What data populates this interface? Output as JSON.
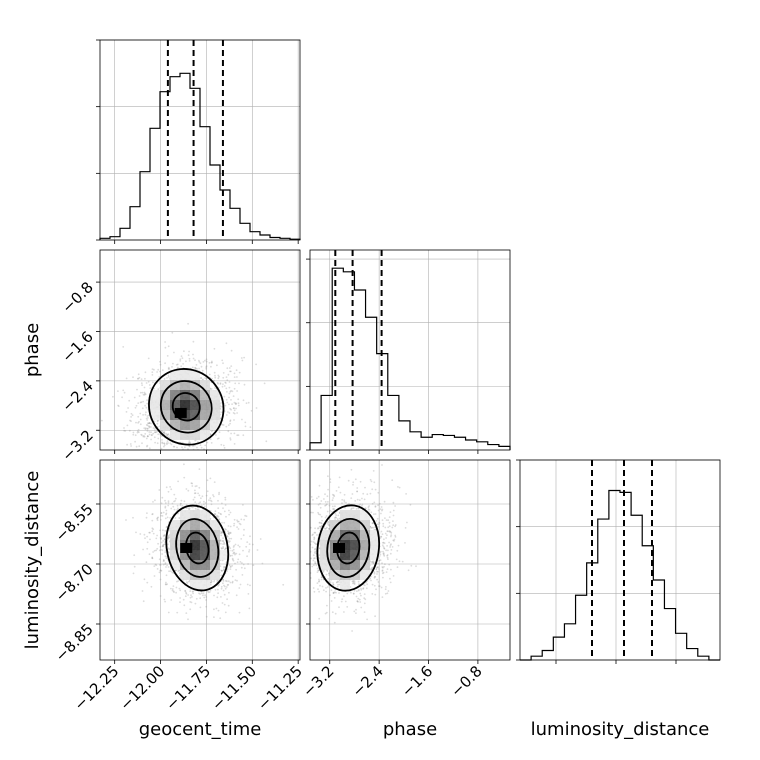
{
  "chart_data": {
    "type": "corner",
    "parameters": [
      "geocent_time",
      "phase",
      "luminosity_distance"
    ],
    "axis_labels": {
      "geocent_time": "geocent_time",
      "phase": "phase",
      "luminosity_distance": "luminosity_distance"
    },
    "ranges": {
      "geocent_time": [
        -12.33,
        -11.24
      ],
      "phase": [
        -3.52,
        -0.28
      ],
      "luminosity_distance": [
        -8.94,
        -8.44
      ]
    },
    "ticks": {
      "geocent_time": [
        {
          "value": -12.25,
          "label": "−12.25"
        },
        {
          "value": -12.0,
          "label": "−12.00"
        },
        {
          "value": -11.75,
          "label": "−11.75"
        },
        {
          "value": -11.5,
          "label": "−11.50"
        },
        {
          "value": -11.25,
          "label": "−11.25"
        }
      ],
      "phase": [
        {
          "value": -3.2,
          "label": "−3.2"
        },
        {
          "value": -2.4,
          "label": "−2.4"
        },
        {
          "value": -1.6,
          "label": "−1.6"
        },
        {
          "value": -0.8,
          "label": "−0.8"
        }
      ],
      "luminosity_distance": [
        {
          "value": -8.85,
          "label": "−8.85"
        },
        {
          "value": -8.7,
          "label": "−8.70"
        },
        {
          "value": -8.55,
          "label": "−8.55"
        }
      ]
    },
    "histograms": {
      "geocent_time": {
        "bins": [
          -12.33,
          -11.24
        ],
        "counts": [
          0.01,
          0.02,
          0.07,
          0.2,
          0.41,
          0.67,
          0.89,
          0.98,
          1.0,
          0.91,
          0.68,
          0.45,
          0.3,
          0.19,
          0.1,
          0.05,
          0.03,
          0.015,
          0.01,
          0.005
        ],
        "quantiles": [
          -11.96,
          -11.82,
          -11.66
        ],
        "ylim": [
          0,
          1.2
        ],
        "yticks": [
          0,
          0.4,
          0.8,
          1.2
        ]
      },
      "phase": {
        "bins": [
          -3.52,
          -0.28
        ],
        "counts": [
          0.04,
          0.3,
          1.0,
          0.98,
          0.88,
          0.73,
          0.53,
          0.3,
          0.16,
          0.1,
          0.07,
          0.085,
          0.08,
          0.07,
          0.055,
          0.045,
          0.03,
          0.02
        ],
        "quantiles": [
          -3.11,
          -2.83,
          -2.36
        ],
        "ylim": [
          0,
          1.1
        ],
        "yticks": [
          0,
          0.35,
          0.7,
          1.05
        ]
      },
      "luminosity_distance": {
        "bins": [
          -8.94,
          -8.44
        ],
        "counts": [
          0.0,
          0.02,
          0.05,
          0.12,
          0.19,
          0.34,
          0.51,
          0.74,
          0.89,
          0.88,
          0.76,
          0.6,
          0.42,
          0.27,
          0.14,
          0.06,
          0.02,
          0.0
        ],
        "quantiles": [
          -8.76,
          -8.68,
          -8.61
        ],
        "ylim": [
          0,
          1.05
        ],
        "yticks": [
          0,
          0.35,
          0.7,
          1.05
        ]
      }
    },
    "joint": [
      {
        "x": "geocent_time",
        "y": "phase",
        "mean": [
          -11.86,
          -2.82
        ],
        "sd": [
          0.12,
          0.38
        ],
        "angle_deg": 38,
        "peak": [
          -11.89,
          -2.92
        ],
        "contour_levels": [
          0.8,
          1.5,
          2.2
        ]
      },
      {
        "x": "geocent_time",
        "y": "luminosity_distance",
        "mean": [
          -11.8,
          -8.66
        ],
        "sd": [
          0.1,
          0.065
        ],
        "angle_deg": 12,
        "peak": [
          -11.86,
          -8.66
        ],
        "contour_levels": [
          0.8,
          1.5,
          2.2
        ]
      },
      {
        "x": "phase",
        "y": "luminosity_distance",
        "mean": [
          -2.9,
          -8.66
        ],
        "sd": [
          0.3,
          0.065
        ],
        "angle_deg": -8,
        "peak": [
          -3.05,
          -8.66
        ],
        "contour_levels": [
          0.8,
          1.5,
          2.2
        ]
      }
    ],
    "grid": true,
    "colors": {
      "line": "#000000",
      "points": "#9a9a9a",
      "grid": "#b0b0b0"
    }
  }
}
